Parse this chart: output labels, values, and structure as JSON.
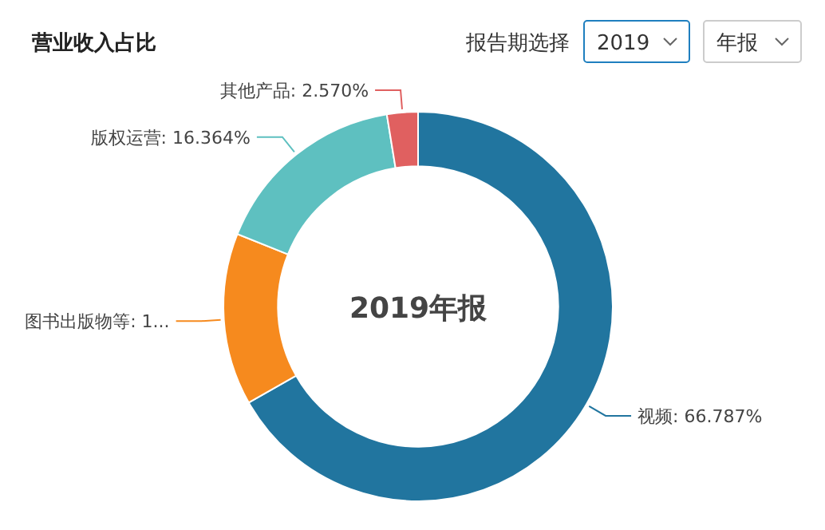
{
  "chart_data": {
    "type": "donut",
    "title": "营业收入占比",
    "categories": [
      "视频",
      "图书出版物等",
      "版权运营",
      "其他产品"
    ],
    "values": [
      66.787,
      14.279,
      16.364,
      2.57
    ],
    "colors": [
      "#21759f",
      "#f68a1e",
      "#5ec0c0",
      "#e06060"
    ],
    "value_labels": [
      "66.787%",
      "1...",
      "16.364%",
      "2.570%"
    ],
    "annotations": [
      "2019年报",
      "报告期选择",
      "2019",
      "年报"
    ]
  }
}
